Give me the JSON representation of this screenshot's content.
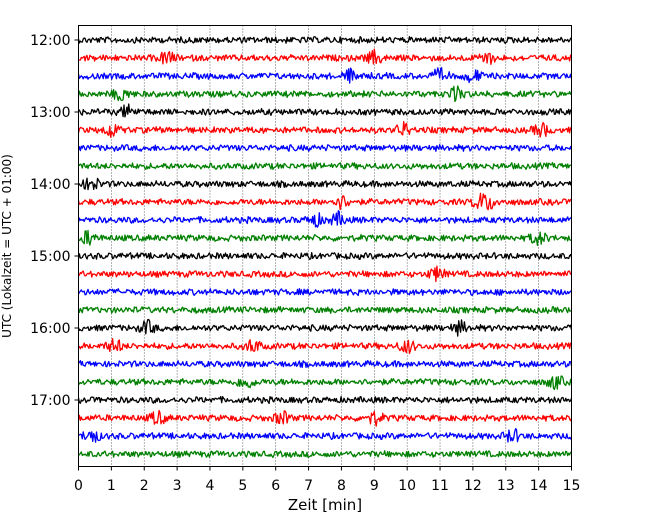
{
  "chart_data": {
    "type": "line",
    "subtype": "seismic-helicorder",
    "title": "",
    "xlabel": "Zeit  [min]",
    "ylabel": "UTC (Lokalzeit = UTC + 01:00)",
    "xlim": [
      0,
      15
    ],
    "x_ticks": [
      0,
      1,
      2,
      3,
      4,
      5,
      6,
      7,
      8,
      9,
      10,
      11,
      12,
      13,
      14,
      15
    ],
    "x_tick_labels": [
      "0",
      "1",
      "2",
      "3",
      "4",
      "5",
      "6",
      "7",
      "8",
      "9",
      "10",
      "11",
      "12",
      "13",
      "14",
      "15"
    ],
    "y_tick_labels": [
      "12:00",
      "13:00",
      "14:00",
      "15:00",
      "16:00",
      "17:00"
    ],
    "trace_interval_minutes": 15,
    "vertical_grid": true,
    "grid_style": "dotted",
    "color_cycle": [
      "#000000",
      "#ff0000",
      "#0000ff",
      "#008000"
    ],
    "trace_count": 24,
    "trace_start_times": [
      "12:00",
      "12:15",
      "12:30",
      "12:45",
      "13:00",
      "13:15",
      "13:30",
      "13:45",
      "14:00",
      "14:15",
      "14:30",
      "14:45",
      "15:00",
      "15:15",
      "15:30",
      "15:45",
      "16:00",
      "16:15",
      "16:30",
      "16:45",
      "17:00",
      "17:15",
      "17:30",
      "17:45"
    ],
    "notable_bursts": [
      {
        "trace": 1,
        "x": [
          2.7,
          9.0,
          12.4
        ]
      },
      {
        "trace": 2,
        "x": [
          8.3,
          11.0,
          12.0
        ]
      },
      {
        "trace": 3,
        "x": [
          1.3,
          11.5
        ]
      },
      {
        "trace": 4,
        "x": [
          1.5
        ]
      },
      {
        "trace": 5,
        "x": [
          1.0,
          9.9,
          14.1
        ]
      },
      {
        "trace": 8,
        "x": [
          0.4
        ]
      },
      {
        "trace": 9,
        "x": [
          8.0,
          12.2,
          12.5
        ]
      },
      {
        "trace": 10,
        "x": [
          7.2,
          7.9
        ]
      },
      {
        "trace": 11,
        "x": [
          0.3,
          14.0
        ]
      },
      {
        "trace": 13,
        "x": [
          10.9
        ]
      },
      {
        "trace": 16,
        "x": [
          2.1,
          11.6
        ]
      },
      {
        "trace": 17,
        "x": [
          1.1,
          5.3,
          10.0
        ]
      },
      {
        "trace": 19,
        "x": [
          5.1,
          14.5
        ]
      },
      {
        "trace": 21,
        "x": [
          2.4,
          6.2,
          9.0
        ]
      },
      {
        "trace": 22,
        "x": [
          0.4,
          13.2
        ]
      }
    ]
  }
}
